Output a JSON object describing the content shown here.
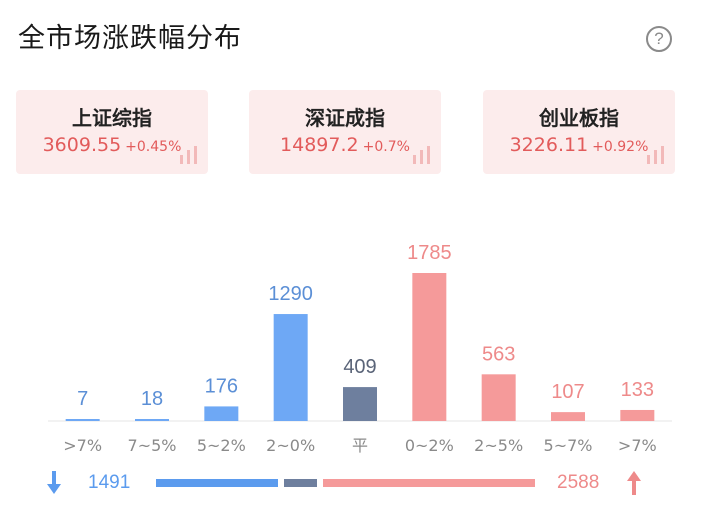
{
  "title": "全市场涨跌幅分布",
  "help_icon": "?",
  "indices": [
    {
      "name": "上证综指",
      "value": "3609.55",
      "change": "+0.45%"
    },
    {
      "name": "深证成指",
      "value": "14897.2",
      "change": "+0.7%"
    },
    {
      "name": "创业板指",
      "value": "3226.11",
      "change": "+0.92%"
    }
  ],
  "chart_data": {
    "type": "bar",
    "categories": [
      ">7%",
      "7~5%",
      "5~2%",
      "2~0%",
      "平",
      "0~2%",
      "2~5%",
      "5~7%",
      ">7%"
    ],
    "values": [
      7,
      18,
      176,
      1290,
      409,
      1785,
      563,
      107,
      133
    ],
    "value_labels": [
      "7",
      "18",
      "176",
      "1290",
      "409",
      "1785",
      "563",
      "107",
      "133"
    ],
    "colors": [
      "#6ea8f5",
      "#6ea8f5",
      "#6ea8f5",
      "#6ea8f5",
      "#6e7f9e",
      "#f59a9a",
      "#f59a9a",
      "#f59a9a",
      "#f59a9a"
    ],
    "label_colors": [
      "#5b8fd6",
      "#5b8fd6",
      "#5b8fd6",
      "#5b8fd6",
      "#5a6478",
      "#ee8a8a",
      "#ee8a8a",
      "#ee8a8a",
      "#ee8a8a"
    ],
    "ylim": [
      0,
      1785
    ]
  },
  "summary": {
    "down_count": 1491,
    "flat_count": 409,
    "up_count": 2588,
    "down_label": "1491",
    "up_label": "2588",
    "down_color": "#5b9bee",
    "flat_color": "#6e7f9e",
    "up_color": "#f59a9a",
    "down_icon": "arrow-down-icon",
    "up_icon": "arrow-up-icon"
  }
}
